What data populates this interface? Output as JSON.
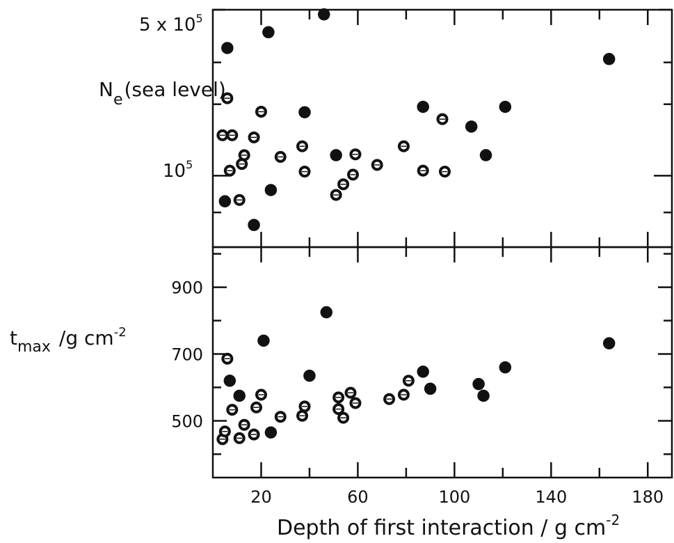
{
  "figure": {
    "xlabel": "Depth of first interaction / g cm",
    "xlabel_sup": "-2",
    "top_ylabel_main": "N",
    "top_ylabel_sub": "e",
    "top_ylabel_rest": "(sea level)",
    "top_ytick_top": "5 x 10",
    "top_ytick_top_sup": "5",
    "top_ytick_mid": "10",
    "top_ytick_mid_sup": "5",
    "bottom_ylabel_main": "t",
    "bottom_ylabel_sub": "max",
    "bottom_ylabel_rest": "/g cm",
    "bottom_ylabel_sup": "-2"
  },
  "chart_data": [
    {
      "type": "scatter",
      "panel": "top",
      "title": "",
      "xlabel": "Depth of first interaction / g cm-2",
      "ylabel": "Ne (sea level)",
      "yscale": "log",
      "xlim": [
        0,
        190
      ],
      "ylim": [
        50000,
        500000
      ],
      "x_ticks": [
        20,
        60,
        100,
        140,
        180
      ],
      "y_ticks": [
        {
          "value": 100000,
          "label": "10^5"
        },
        {
          "value": 500000,
          "label": "5 x 10^5"
        }
      ],
      "points": [
        {
          "x": 4,
          "y": 148000,
          "marker": "open"
        },
        {
          "x": 5,
          "y": 78000,
          "marker": "filled"
        },
        {
          "x": 6,
          "y": 345000,
          "marker": "filled"
        },
        {
          "x": 6,
          "y": 212000,
          "marker": "open"
        },
        {
          "x": 7,
          "y": 105000,
          "marker": "open"
        },
        {
          "x": 8,
          "y": 148000,
          "marker": "open"
        },
        {
          "x": 11,
          "y": 79000,
          "marker": "open"
        },
        {
          "x": 12,
          "y": 112000,
          "marker": "open"
        },
        {
          "x": 13,
          "y": 122000,
          "marker": "open"
        },
        {
          "x": 17,
          "y": 62000,
          "marker": "filled"
        },
        {
          "x": 17,
          "y": 145000,
          "marker": "open"
        },
        {
          "x": 20,
          "y": 186000,
          "marker": "open"
        },
        {
          "x": 23,
          "y": 402000,
          "marker": "filled"
        },
        {
          "x": 24,
          "y": 87000,
          "marker": "filled"
        },
        {
          "x": 28,
          "y": 120000,
          "marker": "open"
        },
        {
          "x": 37,
          "y": 133000,
          "marker": "open"
        },
        {
          "x": 38,
          "y": 185000,
          "marker": "filled"
        },
        {
          "x": 38,
          "y": 104000,
          "marker": "open"
        },
        {
          "x": 46,
          "y": 478000,
          "marker": "filled"
        },
        {
          "x": 51,
          "y": 122000,
          "marker": "filled"
        },
        {
          "x": 51,
          "y": 83000,
          "marker": "open"
        },
        {
          "x": 54,
          "y": 92000,
          "marker": "open"
        },
        {
          "x": 58,
          "y": 101000,
          "marker": "open"
        },
        {
          "x": 59,
          "y": 123000,
          "marker": "open"
        },
        {
          "x": 68,
          "y": 111000,
          "marker": "open"
        },
        {
          "x": 79,
          "y": 133000,
          "marker": "open"
        },
        {
          "x": 87,
          "y": 195000,
          "marker": "filled"
        },
        {
          "x": 87,
          "y": 105000,
          "marker": "open"
        },
        {
          "x": 95,
          "y": 173000,
          "marker": "open"
        },
        {
          "x": 96,
          "y": 104000,
          "marker": "open"
        },
        {
          "x": 107,
          "y": 161000,
          "marker": "filled"
        },
        {
          "x": 113,
          "y": 122000,
          "marker": "filled"
        },
        {
          "x": 121,
          "y": 195000,
          "marker": "filled"
        },
        {
          "x": 164,
          "y": 310000,
          "marker": "filled"
        }
      ]
    },
    {
      "type": "scatter",
      "panel": "bottom",
      "title": "",
      "xlabel": "Depth of first interaction / g cm-2",
      "ylabel": "tmax /g cm-2",
      "xlim": [
        0,
        190
      ],
      "ylim": [
        330,
        1020
      ],
      "x_ticks": [
        20,
        60,
        100,
        140,
        180
      ],
      "y_ticks": [
        500,
        700,
        900
      ],
      "points": [
        {
          "x": 4,
          "y": 445,
          "marker": "open"
        },
        {
          "x": 5,
          "y": 468,
          "marker": "open"
        },
        {
          "x": 6,
          "y": 686,
          "marker": "open"
        },
        {
          "x": 7,
          "y": 620,
          "marker": "filled"
        },
        {
          "x": 8,
          "y": 533,
          "marker": "open"
        },
        {
          "x": 11,
          "y": 575,
          "marker": "filled"
        },
        {
          "x": 11,
          "y": 448,
          "marker": "open"
        },
        {
          "x": 13,
          "y": 488,
          "marker": "open"
        },
        {
          "x": 17,
          "y": 459,
          "marker": "open"
        },
        {
          "x": 18,
          "y": 540,
          "marker": "open"
        },
        {
          "x": 20,
          "y": 578,
          "marker": "open"
        },
        {
          "x": 21,
          "y": 740,
          "marker": "filled"
        },
        {
          "x": 24,
          "y": 465,
          "marker": "filled"
        },
        {
          "x": 28,
          "y": 512,
          "marker": "open"
        },
        {
          "x": 37,
          "y": 515,
          "marker": "open"
        },
        {
          "x": 38,
          "y": 543,
          "marker": "open"
        },
        {
          "x": 40,
          "y": 635,
          "marker": "filled"
        },
        {
          "x": 47,
          "y": 825,
          "marker": "filled"
        },
        {
          "x": 52,
          "y": 570,
          "marker": "open"
        },
        {
          "x": 52,
          "y": 535,
          "marker": "open"
        },
        {
          "x": 54,
          "y": 509,
          "marker": "open"
        },
        {
          "x": 57,
          "y": 584,
          "marker": "open"
        },
        {
          "x": 59,
          "y": 553,
          "marker": "open"
        },
        {
          "x": 73,
          "y": 565,
          "marker": "open"
        },
        {
          "x": 79,
          "y": 578,
          "marker": "open"
        },
        {
          "x": 81,
          "y": 620,
          "marker": "open"
        },
        {
          "x": 87,
          "y": 647,
          "marker": "filled"
        },
        {
          "x": 90,
          "y": 596,
          "marker": "filled"
        },
        {
          "x": 110,
          "y": 610,
          "marker": "filled"
        },
        {
          "x": 112,
          "y": 575,
          "marker": "filled"
        },
        {
          "x": 121,
          "y": 660,
          "marker": "filled"
        },
        {
          "x": 164,
          "y": 732,
          "marker": "filled"
        }
      ]
    }
  ]
}
